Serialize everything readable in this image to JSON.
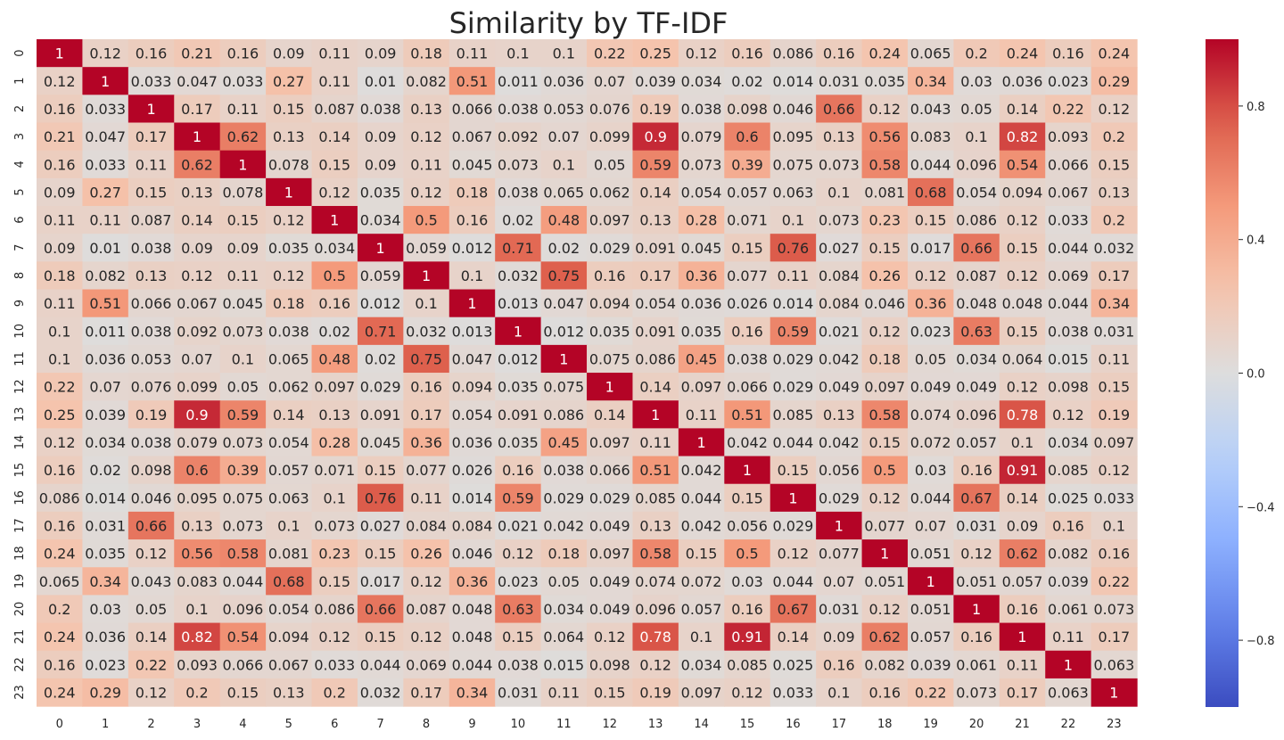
{
  "chart_data": {
    "type": "heatmap",
    "title": "Similarity by TF-IDF",
    "x_categories": [
      "0",
      "1",
      "2",
      "3",
      "4",
      "5",
      "6",
      "7",
      "8",
      "9",
      "10",
      "11",
      "12",
      "13",
      "14",
      "15",
      "16",
      "17",
      "18",
      "19",
      "20",
      "21",
      "22",
      "23"
    ],
    "y_categories": [
      "0",
      "1",
      "2",
      "3",
      "4",
      "5",
      "6",
      "7",
      "8",
      "9",
      "10",
      "11",
      "12",
      "13",
      "14",
      "15",
      "16",
      "17",
      "18",
      "19",
      "20",
      "21",
      "22",
      "23"
    ],
    "values": [
      [
        1,
        0.12,
        0.16,
        0.21,
        0.16,
        0.09,
        0.11,
        0.09,
        0.18,
        0.11,
        0.1,
        0.1,
        0.22,
        0.25,
        0.12,
        0.16,
        0.086,
        0.16,
        0.24,
        0.065,
        0.2,
        0.24,
        0.16,
        0.24
      ],
      [
        0.12,
        1,
        0.033,
        0.047,
        0.033,
        0.27,
        0.11,
        0.01,
        0.082,
        0.51,
        0.011,
        0.036,
        0.07,
        0.039,
        0.034,
        0.02,
        0.014,
        0.031,
        0.035,
        0.34,
        0.03,
        0.036,
        0.023,
        0.29
      ],
      [
        0.16,
        0.033,
        1,
        0.17,
        0.11,
        0.15,
        0.087,
        0.038,
        0.13,
        0.066,
        0.038,
        0.053,
        0.076,
        0.19,
        0.038,
        0.098,
        0.046,
        0.66,
        0.12,
        0.043,
        0.05,
        0.14,
        0.22,
        0.12
      ],
      [
        0.21,
        0.047,
        0.17,
        1,
        0.62,
        0.13,
        0.14,
        0.09,
        0.12,
        0.067,
        0.092,
        0.07,
        0.099,
        0.9,
        0.079,
        0.6,
        0.095,
        0.13,
        0.56,
        0.083,
        0.1,
        0.82,
        0.093,
        0.2
      ],
      [
        0.16,
        0.033,
        0.11,
        0.62,
        1,
        0.078,
        0.15,
        0.09,
        0.11,
        0.045,
        0.073,
        0.1,
        0.05,
        0.59,
        0.073,
        0.39,
        0.075,
        0.073,
        0.58,
        0.044,
        0.096,
        0.54,
        0.066,
        0.15
      ],
      [
        0.09,
        0.27,
        0.15,
        0.13,
        0.078,
        1,
        0.12,
        0.035,
        0.12,
        0.18,
        0.038,
        0.065,
        0.062,
        0.14,
        0.054,
        0.057,
        0.063,
        0.1,
        0.081,
        0.68,
        0.054,
        0.094,
        0.067,
        0.13
      ],
      [
        0.11,
        0.11,
        0.087,
        0.14,
        0.15,
        0.12,
        1,
        0.034,
        0.5,
        0.16,
        0.02,
        0.48,
        0.097,
        0.13,
        0.28,
        0.071,
        0.1,
        0.073,
        0.23,
        0.15,
        0.086,
        0.12,
        0.033,
        0.2
      ],
      [
        0.09,
        0.01,
        0.038,
        0.09,
        0.09,
        0.035,
        0.034,
        1,
        0.059,
        0.012,
        0.71,
        0.02,
        0.029,
        0.091,
        0.045,
        0.15,
        0.76,
        0.027,
        0.15,
        0.017,
        0.66,
        0.15,
        0.044,
        0.032
      ],
      [
        0.18,
        0.082,
        0.13,
        0.12,
        0.11,
        0.12,
        0.5,
        0.059,
        1,
        0.1,
        0.032,
        0.75,
        0.16,
        0.17,
        0.36,
        0.077,
        0.11,
        0.084,
        0.26,
        0.12,
        0.087,
        0.12,
        0.069,
        0.17
      ],
      [
        0.11,
        0.51,
        0.066,
        0.067,
        0.045,
        0.18,
        0.16,
        0.012,
        0.1,
        1,
        0.013,
        0.047,
        0.094,
        0.054,
        0.036,
        0.026,
        0.014,
        0.084,
        0.046,
        0.36,
        0.048,
        0.048,
        0.044,
        0.34
      ],
      [
        0.1,
        0.011,
        0.038,
        0.092,
        0.073,
        0.038,
        0.02,
        0.71,
        0.032,
        0.013,
        1,
        0.012,
        0.035,
        0.091,
        0.035,
        0.16,
        0.59,
        0.021,
        0.12,
        0.023,
        0.63,
        0.15,
        0.038,
        0.031
      ],
      [
        0.1,
        0.036,
        0.053,
        0.07,
        0.1,
        0.065,
        0.48,
        0.02,
        0.75,
        0.047,
        0.012,
        1,
        0.075,
        0.086,
        0.45,
        0.038,
        0.029,
        0.042,
        0.18,
        0.05,
        0.034,
        0.064,
        0.015,
        0.11
      ],
      [
        0.22,
        0.07,
        0.076,
        0.099,
        0.05,
        0.062,
        0.097,
        0.029,
        0.16,
        0.094,
        0.035,
        0.075,
        1,
        0.14,
        0.097,
        0.066,
        0.029,
        0.049,
        0.097,
        0.049,
        0.049,
        0.12,
        0.098,
        0.15
      ],
      [
        0.25,
        0.039,
        0.19,
        0.9,
        0.59,
        0.14,
        0.13,
        0.091,
        0.17,
        0.054,
        0.091,
        0.086,
        0.14,
        1,
        0.11,
        0.51,
        0.085,
        0.13,
        0.58,
        0.074,
        0.096,
        0.78,
        0.12,
        0.19
      ],
      [
        0.12,
        0.034,
        0.038,
        0.079,
        0.073,
        0.054,
        0.28,
        0.045,
        0.36,
        0.036,
        0.035,
        0.45,
        0.097,
        0.11,
        1,
        0.042,
        0.044,
        0.042,
        0.15,
        0.072,
        0.057,
        0.1,
        0.034,
        0.097
      ],
      [
        0.16,
        0.02,
        0.098,
        0.6,
        0.39,
        0.057,
        0.071,
        0.15,
        0.077,
        0.026,
        0.16,
        0.038,
        0.066,
        0.51,
        0.042,
        1,
        0.15,
        0.056,
        0.5,
        0.03,
        0.16,
        0.91,
        0.085,
        0.12
      ],
      [
        0.086,
        0.014,
        0.046,
        0.095,
        0.075,
        0.063,
        0.1,
        0.76,
        0.11,
        0.014,
        0.59,
        0.029,
        0.029,
        0.085,
        0.044,
        0.15,
        1,
        0.029,
        0.12,
        0.044,
        0.67,
        0.14,
        0.025,
        0.033
      ],
      [
        0.16,
        0.031,
        0.66,
        0.13,
        0.073,
        0.1,
        0.073,
        0.027,
        0.084,
        0.084,
        0.021,
        0.042,
        0.049,
        0.13,
        0.042,
        0.056,
        0.029,
        1,
        0.077,
        0.07,
        0.031,
        0.09,
        0.16,
        0.1
      ],
      [
        0.24,
        0.035,
        0.12,
        0.56,
        0.58,
        0.081,
        0.23,
        0.15,
        0.26,
        0.046,
        0.12,
        0.18,
        0.097,
        0.58,
        0.15,
        0.5,
        0.12,
        0.077,
        1,
        0.051,
        0.12,
        0.62,
        0.082,
        0.16
      ],
      [
        0.065,
        0.34,
        0.043,
        0.083,
        0.044,
        0.68,
        0.15,
        0.017,
        0.12,
        0.36,
        0.023,
        0.05,
        0.049,
        0.074,
        0.072,
        0.03,
        0.044,
        0.07,
        0.051,
        1,
        0.051,
        0.057,
        0.039,
        0.22
      ],
      [
        0.2,
        0.03,
        0.05,
        0.1,
        0.096,
        0.054,
        0.086,
        0.66,
        0.087,
        0.048,
        0.63,
        0.034,
        0.049,
        0.096,
        0.057,
        0.16,
        0.67,
        0.031,
        0.12,
        0.051,
        1,
        0.16,
        0.061,
        0.073
      ],
      [
        0.24,
        0.036,
        0.14,
        0.82,
        0.54,
        0.094,
        0.12,
        0.15,
        0.12,
        0.048,
        0.15,
        0.064,
        0.12,
        0.78,
        0.1,
        0.91,
        0.14,
        0.09,
        0.62,
        0.057,
        0.16,
        1,
        0.11,
        0.17
      ],
      [
        0.16,
        0.023,
        0.22,
        0.093,
        0.066,
        0.067,
        0.033,
        0.044,
        0.069,
        0.044,
        0.038,
        0.015,
        0.098,
        0.12,
        0.034,
        0.085,
        0.025,
        0.16,
        0.082,
        0.039,
        0.061,
        0.11,
        1,
        0.063
      ],
      [
        0.24,
        0.29,
        0.12,
        0.2,
        0.15,
        0.13,
        0.2,
        0.032,
        0.17,
        0.34,
        0.031,
        0.11,
        0.15,
        0.19,
        0.097,
        0.12,
        0.033,
        0.1,
        0.16,
        0.22,
        0.073,
        0.17,
        0.063,
        1
      ]
    ],
    "vmin": -1,
    "vmax": 1,
    "colormap": "coolwarm",
    "colorbar_ticks": [
      "0.8",
      "0.4",
      "0.0",
      "−0.4",
      "−0.8"
    ],
    "colorbar_tick_values": [
      0.8,
      0.4,
      0.0,
      -0.4,
      -0.8
    ],
    "annotations": true,
    "grid": false
  }
}
